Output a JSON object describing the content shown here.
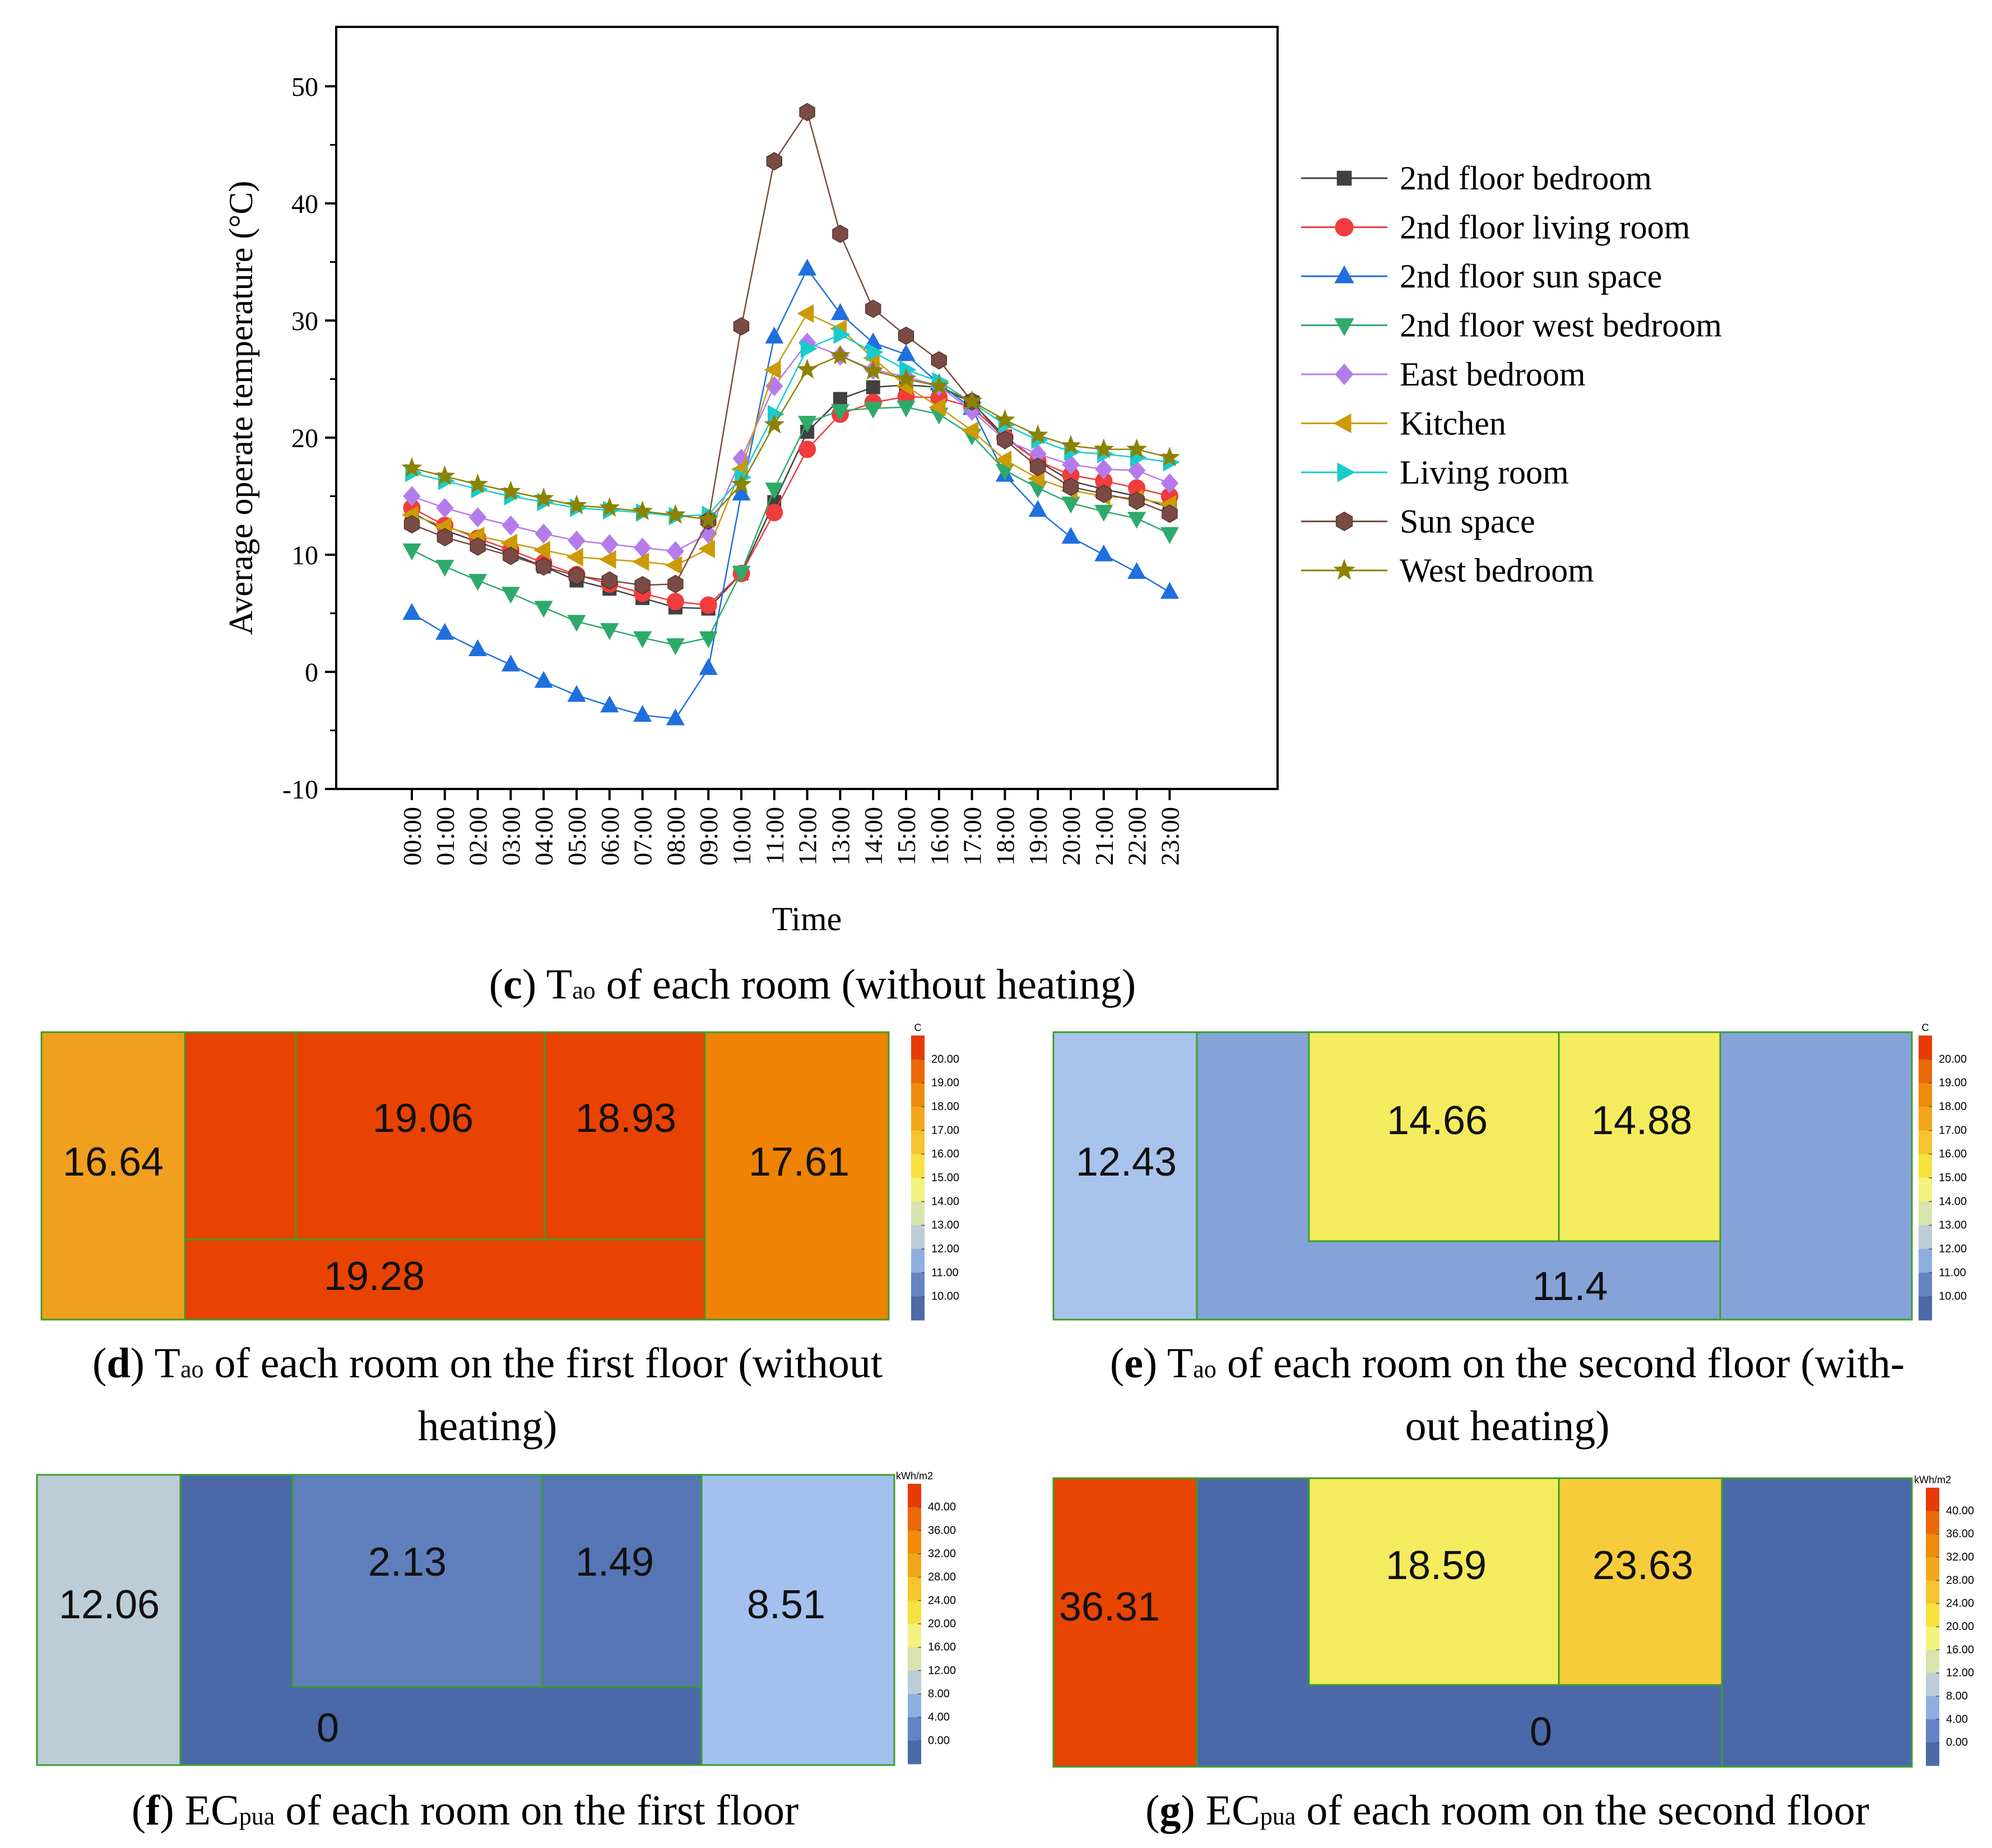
{
  "chart_data": [
    {
      "type": "line",
      "title": "",
      "xlabel": "Time",
      "ylabel": "Average operate temperature (°C)",
      "ylim": [
        -10,
        55
      ],
      "yticks": [
        -10,
        0,
        10,
        20,
        30,
        40,
        50
      ],
      "categories": [
        "00:00",
        "01:00",
        "02:00",
        "03:00",
        "04:00",
        "05:00",
        "06:00",
        "07:00",
        "08:00",
        "09:00",
        "10:00",
        "11:00",
        "12:00",
        "13:00",
        "14:00",
        "15:00",
        "16:00",
        "17:00",
        "18:00",
        "19:00",
        "20:00",
        "21:00",
        "22:00",
        "23:00"
      ],
      "legend_position": "right",
      "series": [
        {
          "name": "2nd floor bedroom",
          "color": "#404040",
          "marker": "square",
          "values": [
            13.6,
            12.1,
            11.1,
            10.1,
            9.0,
            7.8,
            7.1,
            6.3,
            5.5,
            5.4,
            8.4,
            14.5,
            20.5,
            23.3,
            24.3,
            24.5,
            24.3,
            23.0,
            20.1,
            18.0,
            16.3,
            15.6,
            15.0,
            14.0
          ]
        },
        {
          "name": "2nd floor living room",
          "color": "#f03c3c",
          "marker": "circle",
          "values": [
            14.0,
            12.5,
            11.4,
            10.4,
            9.3,
            8.3,
            7.5,
            6.7,
            6.0,
            5.7,
            8.4,
            13.6,
            19.0,
            22.0,
            23.0,
            23.5,
            23.4,
            22.6,
            20.0,
            18.0,
            16.8,
            16.3,
            15.7,
            15.0
          ]
        },
        {
          "name": "2nd floor sun space",
          "color": "#1f6fde",
          "marker": "tri-up",
          "values": [
            5.0,
            3.3,
            1.9,
            0.6,
            -0.8,
            -2.0,
            -2.9,
            -3.7,
            -4.0,
            0.3,
            15.2,
            28.6,
            34.4,
            30.6,
            28.1,
            27.1,
            24.6,
            22.5,
            16.8,
            13.8,
            11.5,
            10.0,
            8.5,
            6.8
          ]
        },
        {
          "name": "2nd floor west bedroom",
          "color": "#2eaa6a",
          "marker": "tri-down",
          "values": [
            10.4,
            9.0,
            7.8,
            6.7,
            5.5,
            4.3,
            3.6,
            2.9,
            2.3,
            2.9,
            8.5,
            15.6,
            21.3,
            22.3,
            22.5,
            22.6,
            22.0,
            20.2,
            17.2,
            15.7,
            14.4,
            13.7,
            13.1,
            11.8
          ]
        },
        {
          "name": "East bedroom",
          "color": "#b57bea",
          "marker": "diamond",
          "values": [
            15.0,
            14.0,
            13.2,
            12.5,
            11.8,
            11.2,
            10.9,
            10.6,
            10.3,
            11.8,
            18.2,
            24.4,
            28.1,
            27.0,
            25.8,
            25.2,
            24.4,
            22.3,
            19.8,
            18.6,
            17.7,
            17.3,
            17.2,
            16.1
          ]
        },
        {
          "name": "Kitchen",
          "color": "#cc9a06",
          "marker": "tri-left",
          "values": [
            13.4,
            12.4,
            11.6,
            11.0,
            10.4,
            9.8,
            9.6,
            9.4,
            9.1,
            10.5,
            17.3,
            25.8,
            30.6,
            29.3,
            26.8,
            24.4,
            22.6,
            20.6,
            18.1,
            16.5,
            15.5,
            15.0,
            14.8,
            14.3
          ]
        },
        {
          "name": "Living room",
          "color": "#19cccc",
          "marker": "tri-right",
          "values": [
            17.0,
            16.3,
            15.6,
            15.0,
            14.5,
            14.0,
            13.8,
            13.6,
            13.3,
            13.4,
            16.6,
            22.0,
            27.6,
            28.8,
            27.3,
            25.8,
            24.8,
            23.0,
            21.1,
            19.8,
            18.8,
            18.6,
            18.3,
            17.9
          ]
        },
        {
          "name": "Sun space",
          "color": "#7a4a44",
          "marker": "hexagon",
          "values": [
            12.6,
            11.5,
            10.7,
            9.9,
            9.0,
            8.2,
            7.8,
            7.4,
            7.5,
            12.9,
            29.5,
            43.6,
            47.8,
            37.4,
            31.0,
            28.7,
            26.6,
            23.1,
            19.8,
            17.5,
            15.8,
            15.2,
            14.6,
            13.5
          ]
        },
        {
          "name": "West bedroom",
          "color": "#8c8200",
          "marker": "star",
          "values": [
            17.4,
            16.7,
            16.0,
            15.4,
            14.8,
            14.2,
            14.0,
            13.7,
            13.4,
            13.0,
            16.0,
            21.1,
            25.8,
            27.0,
            25.7,
            25.0,
            24.4,
            23.1,
            21.5,
            20.2,
            19.3,
            19.0,
            19.0,
            18.3
          ]
        }
      ],
      "caption": {
        "letter": "c",
        "prefix": " T",
        "sub": "ao",
        "suffix": " of each room (without heating)"
      }
    },
    {
      "type": "heatmap",
      "name": "first-floor-tao",
      "legend_unit": "C",
      "legend_ticks": [
        "20.00",
        "19.00",
        "18.00",
        "17.00",
        "16.00",
        "15.00",
        "14.00",
        "13.00",
        "12.00",
        "11.00",
        "10.00"
      ],
      "legend_colors": [
        "#e83a05",
        "#ea6806",
        "#ee8c0a",
        "#f2a71b",
        "#f6c42e",
        "#f7e13e",
        "#f4f27f",
        "#d8e3ae",
        "#bccdd8",
        "#8faee0",
        "#6584c5",
        "#4d6aa8"
      ],
      "rooms": {
        "west": "16.64",
        "center_left": "19.06",
        "center_right": "18.93",
        "east": "17.61",
        "south": "19.28"
      },
      "room_colors": {
        "west": "#f0a01e",
        "center": "#e84302",
        "east": "#ee8305"
      },
      "caption": {
        "letter": "d",
        "prefix": " T",
        "sub": "ao",
        "line1": " of each room on the first floor (without",
        "line2": "heating)"
      }
    },
    {
      "type": "heatmap",
      "name": "second-floor-tao",
      "legend_unit": "C",
      "legend_ticks": [
        "20.00",
        "19.00",
        "18.00",
        "17.00",
        "16.00",
        "15.00",
        "14.00",
        "13.00",
        "12.00",
        "11.00",
        "10.00"
      ],
      "legend_colors": [
        "#e83a05",
        "#ea6806",
        "#ee8c0a",
        "#f2a71b",
        "#f6c42e",
        "#f7e13e",
        "#f4f27f",
        "#d8e3ae",
        "#bccdd8",
        "#8faee0",
        "#6584c5",
        "#4d6aa8"
      ],
      "rooms": {
        "west": "12.43",
        "center_left": "14.66",
        "center_right": "14.88",
        "south": "11.4"
      },
      "room_colors": {
        "west": "#a8c4ec",
        "center": "#f4ec5e",
        "surround": "#85a3d8"
      },
      "caption": {
        "letter": "e",
        "prefix": " T",
        "sub": "ao",
        "line1": " of each room on the second floor (with-",
        "line2": "out heating)"
      }
    },
    {
      "type": "heatmap",
      "name": "first-floor-ecpua",
      "legend_unit": "kWh/m2",
      "legend_ticks": [
        "40.00",
        "36.00",
        "32.00",
        "28.00",
        "24.00",
        "20.00",
        "16.00",
        "12.00",
        "8.00",
        "4.00",
        "0.00"
      ],
      "legend_colors": [
        "#e83a05",
        "#ea6806",
        "#ee8c0a",
        "#f2a71b",
        "#f6c42e",
        "#f7e13e",
        "#f4f27f",
        "#d8e3ae",
        "#bccdd8",
        "#8faee0",
        "#6584c5",
        "#4d6aa8"
      ],
      "rooms": {
        "west": "12.06",
        "center_left": "2.13",
        "center_right": "1.49",
        "east": "8.51",
        "south": "0"
      },
      "room_colors": {
        "west": "#bccdd8",
        "center_left": "#5f7fbd",
        "center_right": "#5675b4",
        "east": "#a4c0ee",
        "south": "#4b69a8"
      },
      "caption": {
        "letter": "f",
        "prefix": " EC",
        "sub": "pua",
        "suffix": " of each room on the first floor"
      }
    },
    {
      "type": "heatmap",
      "name": "second-floor-ecpua",
      "legend_unit": "kWh/m2",
      "legend_ticks": [
        "40.00",
        "36.00",
        "32.00",
        "28.00",
        "24.00",
        "20.00",
        "16.00",
        "12.00",
        "8.00",
        "4.00",
        "0.00"
      ],
      "legend_colors": [
        "#e83a05",
        "#ea6806",
        "#ee8c0a",
        "#f2a71b",
        "#f6c42e",
        "#f7e13e",
        "#f4f27f",
        "#d8e3ae",
        "#bccdd8",
        "#8faee0",
        "#6584c5",
        "#4d6aa8"
      ],
      "rooms": {
        "west": "36.31",
        "center_left": "18.59",
        "center_right": "23.63",
        "south": "0"
      },
      "room_colors": {
        "west": "#e84403",
        "center_left": "#f4ec5e",
        "center_right": "#f6cc3a",
        "surround": "#4b69a8"
      },
      "caption": {
        "letter": "g",
        "prefix": " EC",
        "sub": "pua",
        "suffix": " of each room on the second floor"
      }
    }
  ]
}
